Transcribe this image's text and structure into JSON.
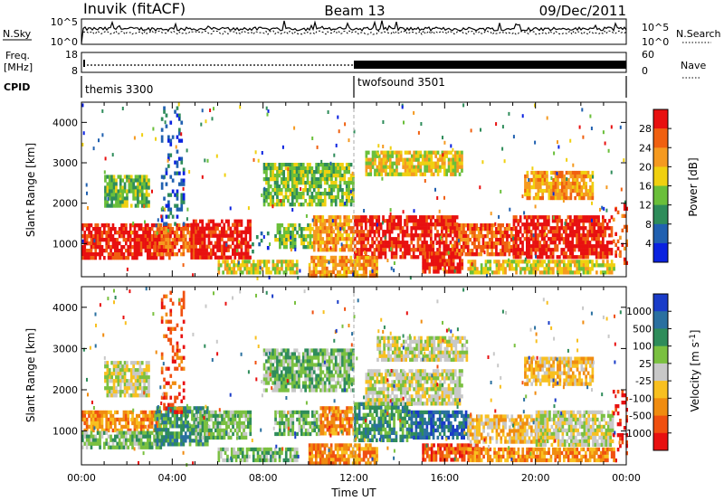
{
  "header": {
    "station": "Inuvik (fitACF)",
    "beam": "Beam 13",
    "date": "09/Dec/2011"
  },
  "nsky": {
    "label": "N.Sky",
    "tick_top": "10^5",
    "tick_bottom": "10^0",
    "right_tick_top": "10^5",
    "right_tick_bottom": "10^0",
    "right_label": "N.Search"
  },
  "freq": {
    "label_line1": "Freq.",
    "label_line2": "[MHz]",
    "tick_top": "18",
    "tick_bottom": "8",
    "right_tick_top": "60",
    "right_tick_bottom": "0",
    "right_label": "Nave"
  },
  "cpid": {
    "label": "CPID",
    "segments": [
      {
        "name": "themis 3300",
        "start_hour": 0,
        "end_hour": 12
      },
      {
        "name": "twofsound 3501",
        "start_hour": 12,
        "end_hour": 24
      }
    ]
  },
  "chart_data": [
    {
      "type": "heatmap",
      "panel": "power",
      "ylabel": "Slant Range [km]",
      "y_ticks": [
        "1000",
        "2000",
        "3000",
        "4000"
      ],
      "ylim": [
        180,
        4500
      ],
      "xlim": [
        0,
        24
      ],
      "colorbar": {
        "label": "Power [dB]",
        "ticks": [
          "4",
          "8",
          "12",
          "16",
          "20",
          "24",
          "28"
        ],
        "colors": [
          "#0a22e0",
          "#2060b0",
          "#2e8c5a",
          "#6abf3a",
          "#f0d010",
          "#f59a20",
          "#f06010",
          "#e81010"
        ]
      },
      "blobs": [
        {
          "t0": 0.0,
          "t1": 3.9,
          "r0": 650,
          "r1": 1500,
          "level": 7
        },
        {
          "t0": 3.2,
          "t1": 5.0,
          "r0": 700,
          "r1": 1500,
          "level": 6
        },
        {
          "t0": 4.8,
          "t1": 7.4,
          "r0": 700,
          "r1": 1600,
          "level": 7
        },
        {
          "t0": 7.5,
          "t1": 8.2,
          "r0": 800,
          "r1": 1300,
          "level": 1
        },
        {
          "t0": 8.5,
          "t1": 10.2,
          "r0": 900,
          "r1": 1500,
          "level": 3
        },
        {
          "t0": 10.2,
          "t1": 12.0,
          "r0": 850,
          "r1": 1700,
          "level": 5
        },
        {
          "t0": 12.0,
          "t1": 16.5,
          "r0": 700,
          "r1": 1700,
          "level": 7
        },
        {
          "t0": 15.0,
          "t1": 16.8,
          "r0": 300,
          "r1": 800,
          "level": 7
        },
        {
          "t0": 16.5,
          "t1": 19.0,
          "r0": 700,
          "r1": 1500,
          "level": 6
        },
        {
          "t0": 19.0,
          "t1": 23.4,
          "r0": 700,
          "r1": 1700,
          "level": 7
        },
        {
          "t0": 23.4,
          "t1": 24.0,
          "r0": 300,
          "r1": 2000,
          "level": 6
        },
        {
          "t0": 12.5,
          "t1": 16.8,
          "r0": 2700,
          "r1": 3300,
          "level": 4
        },
        {
          "t0": 1.0,
          "t1": 3.0,
          "r0": 1900,
          "r1": 2700,
          "level": 3
        },
        {
          "t0": 8.0,
          "t1": 12.0,
          "r0": 2000,
          "r1": 3000,
          "level": 3
        },
        {
          "t0": 19.5,
          "t1": 22.5,
          "r0": 2100,
          "r1": 2800,
          "level": 5
        },
        {
          "t0": 6.0,
          "t1": 9.5,
          "r0": 250,
          "r1": 600,
          "level": 4
        },
        {
          "t0": 10.0,
          "t1": 13.0,
          "r0": 250,
          "r1": 700,
          "level": 5
        },
        {
          "t0": 17.0,
          "t1": 23.5,
          "r0": 250,
          "r1": 600,
          "level": 4
        },
        {
          "t0": 3.5,
          "t1": 4.5,
          "r0": 1500,
          "r1": 4400,
          "level": 1
        }
      ]
    },
    {
      "type": "heatmap",
      "panel": "velocity",
      "ylabel": "Slant Range [km]",
      "y_ticks": [
        "1000",
        "2000",
        "3000",
        "4000"
      ],
      "ylim": [
        180,
        4500
      ],
      "xlim": [
        0,
        24
      ],
      "x_ticks": [
        "00:00",
        "04:00",
        "08:00",
        "12:00",
        "16:00",
        "20:00",
        "00:00"
      ],
      "xlabel": "Time UT",
      "colorbar": {
        "label": "Velocity [m s^-1]",
        "ticks": [
          "1000",
          "500",
          "100",
          "25",
          "-25",
          "-100",
          "-500",
          "-1000"
        ],
        "colors": [
          "#1a3cc8",
          "#2a70a0",
          "#2e8c5a",
          "#7ac040",
          "#c8c8c8",
          "#f8c020",
          "#f08c10",
          "#f05010",
          "#e81010"
        ]
      },
      "blobs": [
        {
          "t0": 0.0,
          "t1": 3.5,
          "r0": 1000,
          "r1": 1500,
          "level": 6
        },
        {
          "t0": 0.0,
          "t1": 3.5,
          "r0": 600,
          "r1": 1000,
          "level": 3
        },
        {
          "t0": 3.2,
          "t1": 5.5,
          "r0": 700,
          "r1": 1600,
          "level": 2
        },
        {
          "t0": 5.0,
          "t1": 7.4,
          "r0": 800,
          "r1": 1500,
          "level": 3
        },
        {
          "t0": 8.5,
          "t1": 10.5,
          "r0": 900,
          "r1": 1500,
          "level": 3
        },
        {
          "t0": 10.5,
          "t1": 12.0,
          "r0": 900,
          "r1": 1600,
          "level": 6
        },
        {
          "t0": 12.0,
          "t1": 14.5,
          "r0": 800,
          "r1": 1700,
          "level": 2
        },
        {
          "t0": 14.5,
          "t1": 17.0,
          "r0": 800,
          "r1": 1500,
          "level": 1
        },
        {
          "t0": 15.0,
          "t1": 17.5,
          "r0": 300,
          "r1": 700,
          "level": 7
        },
        {
          "t0": 17.0,
          "t1": 20.5,
          "r0": 700,
          "r1": 1400,
          "level": 5
        },
        {
          "t0": 20.0,
          "t1": 23.4,
          "r0": 700,
          "r1": 1500,
          "level": 4
        },
        {
          "t0": 23.4,
          "t1": 24.0,
          "r0": 300,
          "r1": 2000,
          "level": 8
        },
        {
          "t0": 12.5,
          "t1": 16.8,
          "r0": 1700,
          "r1": 2500,
          "level": 4
        },
        {
          "t0": 13.0,
          "t1": 17.0,
          "r0": 2700,
          "r1": 3300,
          "level": 4
        },
        {
          "t0": 1.0,
          "t1": 3.0,
          "r0": 1900,
          "r1": 2700,
          "level": 4
        },
        {
          "t0": 8.0,
          "t1": 12.0,
          "r0": 2000,
          "r1": 3000,
          "level": 3
        },
        {
          "t0": 19.5,
          "t1": 22.5,
          "r0": 2100,
          "r1": 2800,
          "level": 5
        },
        {
          "t0": 6.0,
          "t1": 9.5,
          "r0": 250,
          "r1": 600,
          "level": 3
        },
        {
          "t0": 10.0,
          "t1": 13.0,
          "r0": 250,
          "r1": 700,
          "level": 6
        },
        {
          "t0": 17.0,
          "t1": 23.5,
          "r0": 250,
          "r1": 600,
          "level": 6
        },
        {
          "t0": 3.5,
          "t1": 4.5,
          "r0": 1500,
          "r1": 4400,
          "level": 7
        }
      ]
    }
  ]
}
